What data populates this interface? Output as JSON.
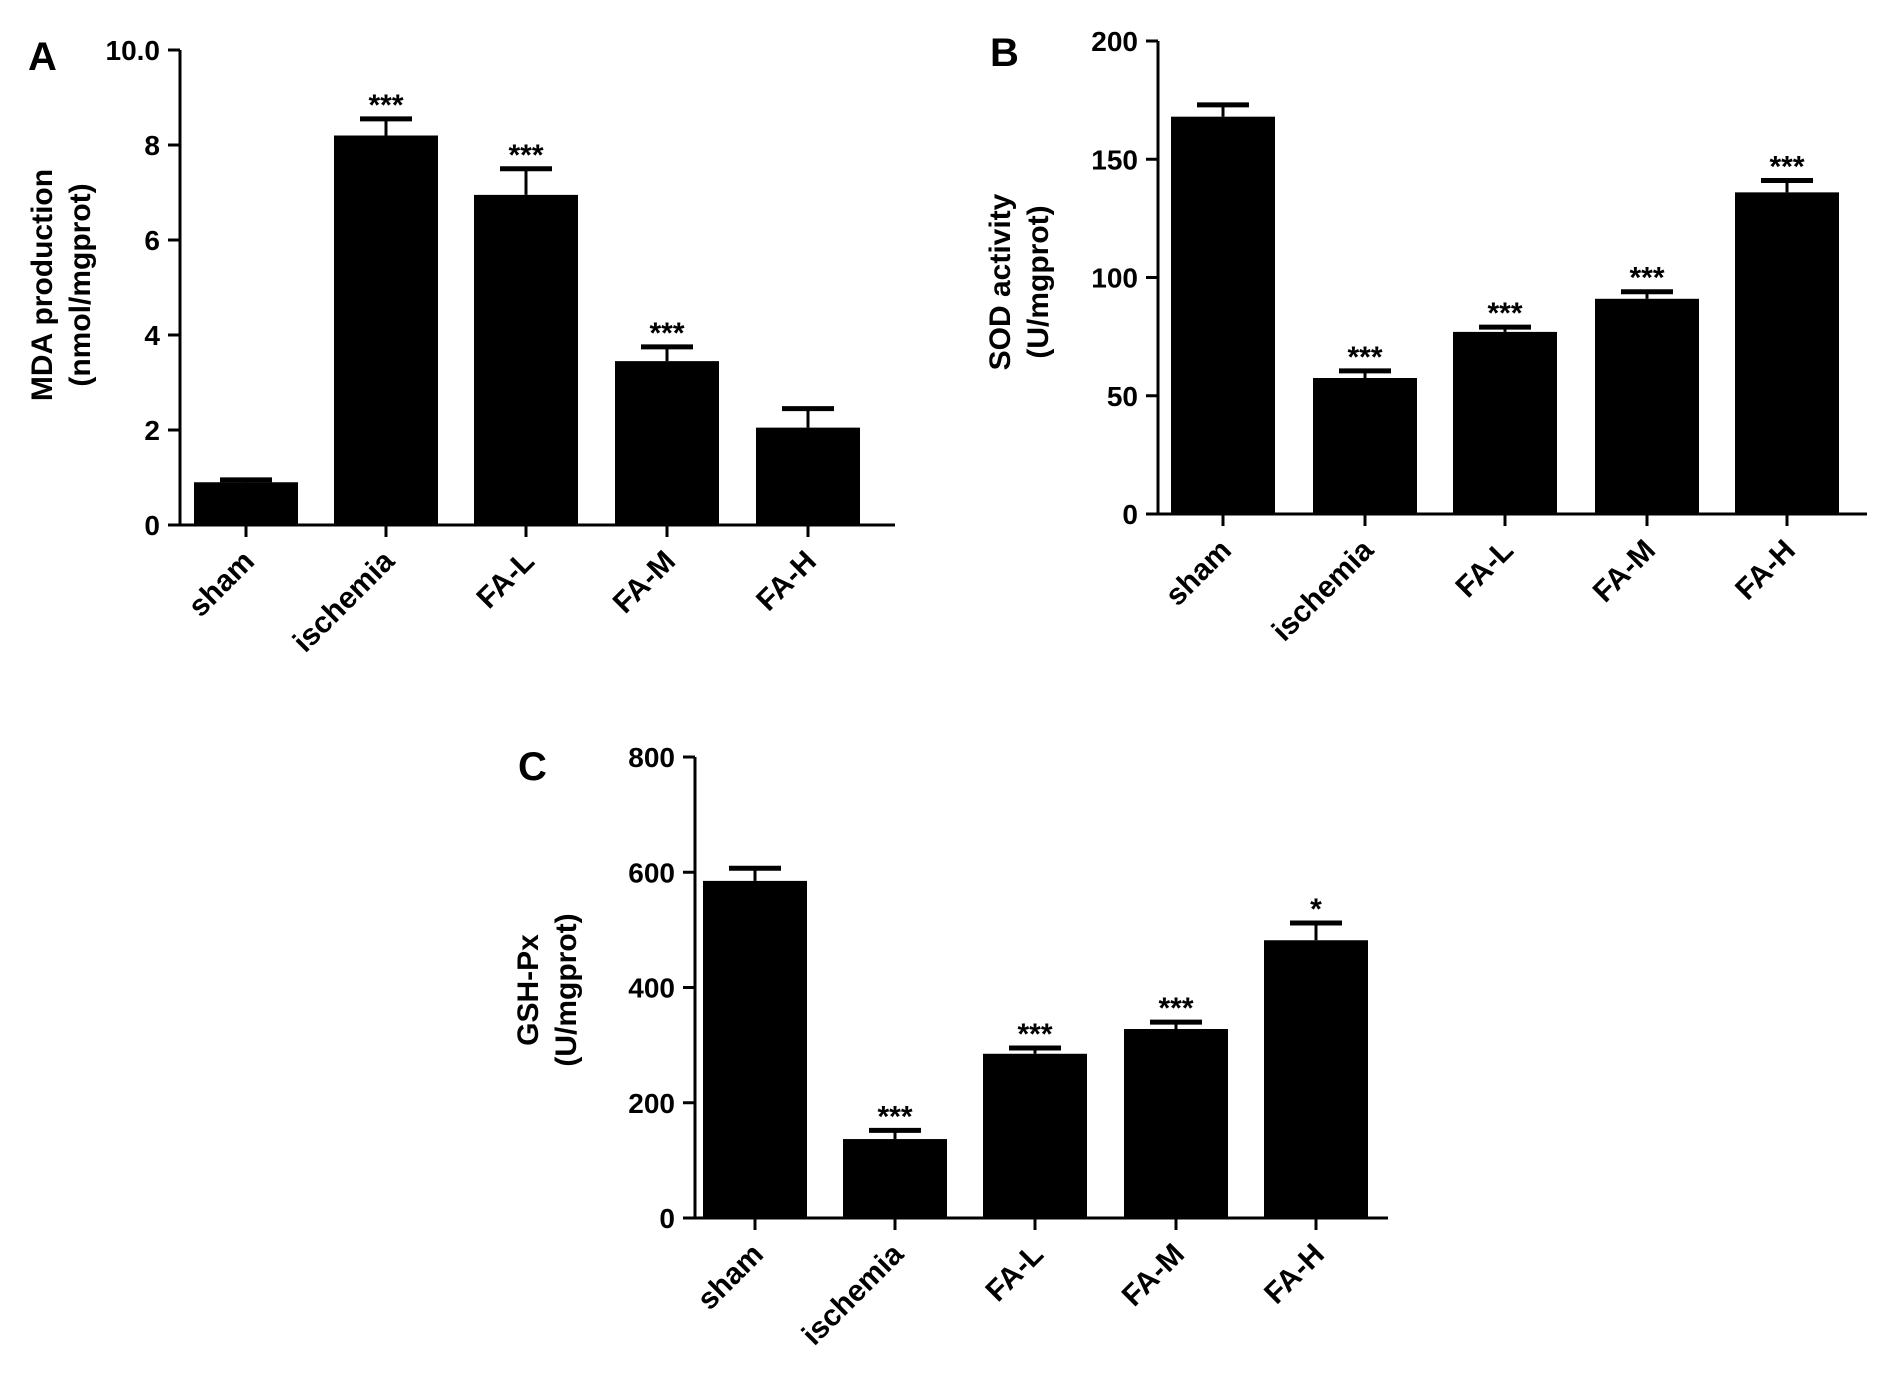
{
  "chart_data": [
    {
      "type": "bar",
      "panel_label": "A",
      "categories": [
        "sham",
        "ischemia",
        "FA-L",
        "FA-M",
        "FA-H"
      ],
      "values": [
        0.9,
        8.2,
        6.95,
        3.45,
        2.05
      ],
      "errors": [
        0.05,
        0.35,
        0.55,
        0.3,
        0.4
      ],
      "significance": [
        "",
        "***",
        "***",
        "***",
        ""
      ],
      "ylabel": [
        "MDA production",
        "(nmol/mgprot)"
      ],
      "ylim": [
        0,
        10
      ],
      "yticks": [
        0,
        2,
        4,
        6,
        8,
        10
      ],
      "ytick_labels": [
        "0",
        "2",
        "4",
        "6",
        "8",
        "10.0"
      ],
      "grid": false,
      "color": "#000000"
    },
    {
      "type": "bar",
      "panel_label": "B",
      "categories": [
        "sham",
        "ischemia",
        "FA-L",
        "FA-M",
        "FA-H"
      ],
      "values": [
        168,
        57.5,
        77,
        91,
        136
      ],
      "errors": [
        5,
        3,
        2,
        3,
        5
      ],
      "significance": [
        "",
        "***",
        "***",
        "***",
        "***"
      ],
      "ylabel": [
        "SOD activity",
        "(U/mgprot)"
      ],
      "ylim": [
        0,
        200
      ],
      "yticks": [
        0,
        50,
        100,
        150,
        200
      ],
      "ytick_labels": [
        "0",
        "50",
        "100",
        "150",
        "200"
      ],
      "grid": false,
      "color": "#000000"
    },
    {
      "type": "bar",
      "panel_label": "C",
      "categories": [
        "sham",
        "ischemia",
        "FA-L",
        "FA-M",
        "FA-H"
      ],
      "values": [
        585,
        137,
        285,
        328,
        482
      ],
      "errors": [
        22,
        15,
        10,
        12,
        30
      ],
      "significance": [
        "",
        "***",
        "***",
        "***",
        "*"
      ],
      "ylabel": [
        "GSH-Px",
        "(U/mgprot)"
      ],
      "ylim": [
        0,
        800
      ],
      "yticks": [
        0,
        200,
        400,
        600,
        800
      ],
      "ytick_labels": [
        "0",
        "200",
        "400",
        "600",
        "800"
      ],
      "grid": false,
      "color": "#000000"
    }
  ]
}
